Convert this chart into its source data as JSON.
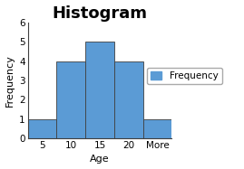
{
  "title": "Histogram",
  "xlabel": "Age",
  "ylabel": "Frequency",
  "categories": [
    "5",
    "10",
    "15",
    "20",
    "More"
  ],
  "values": [
    1,
    4,
    5,
    4,
    1
  ],
  "bar_color": "#5B9BD5",
  "bar_edge_color": "#404040",
  "ylim": [
    0,
    6
  ],
  "yticks": [
    0,
    1,
    2,
    3,
    4,
    5,
    6
  ],
  "background_color": "#ffffff",
  "legend_label": "Frequency",
  "title_fontsize": 13,
  "axis_fontsize": 8,
  "tick_fontsize": 7.5
}
